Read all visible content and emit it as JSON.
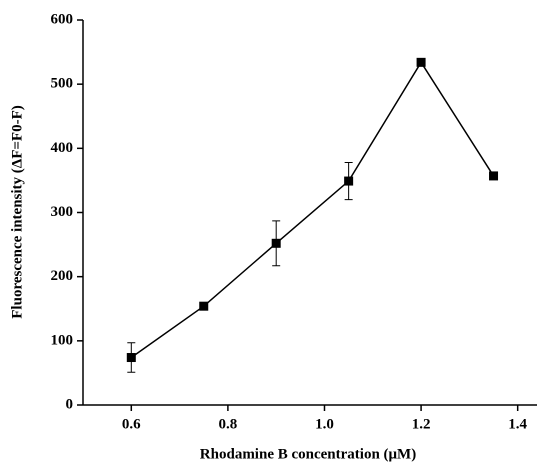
{
  "chart_data": {
    "type": "line",
    "xlabel": "Rhodamine B concentration (μM)",
    "ylabel": "Fluorescence intensity (ΔF=F0-F)",
    "x": [
      0.6,
      0.75,
      0.9,
      1.05,
      1.2,
      1.35
    ],
    "series": [
      {
        "color": "#000000",
        "values": [
          74,
          154,
          252,
          349,
          534,
          357
        ],
        "errors": [
          23,
          3,
          35,
          29,
          2,
          3
        ]
      }
    ],
    "xlim": [
      0.5,
      1.44
    ],
    "xticks": [
      0.6,
      0.8,
      {
        "value": 1.0,
        "label": "1.0"
      },
      1.2,
      1.4
    ],
    "ylim": [
      0,
      600
    ],
    "yticks": [
      0,
      100,
      200,
      300,
      400,
      500,
      600
    ]
  }
}
